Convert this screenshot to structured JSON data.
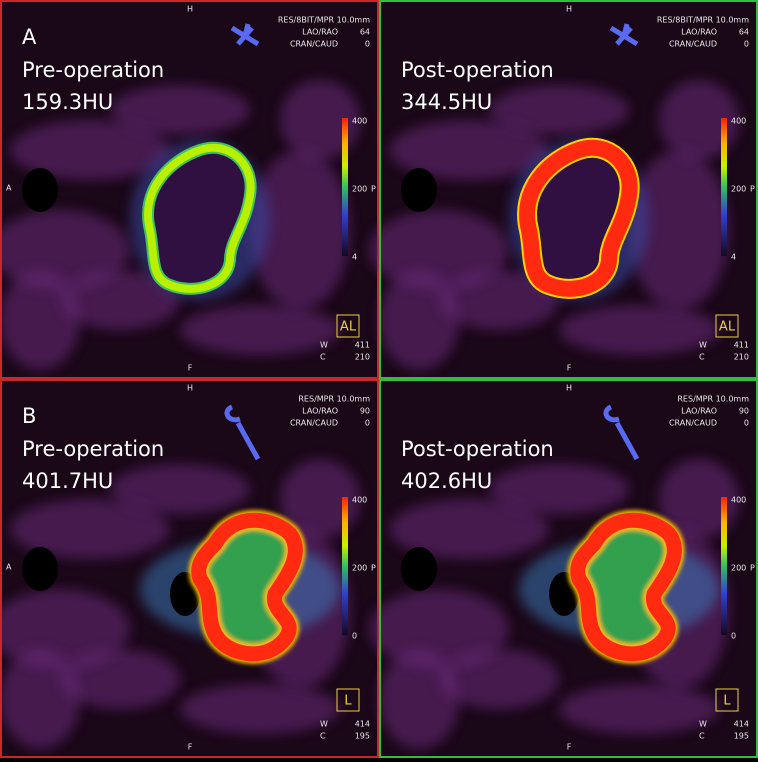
{
  "panels": [
    {
      "label": "A",
      "title": "Pre-operation",
      "value": "159.3HU",
      "border_color": "#c8282a",
      "orientation": {
        "top": "H",
        "bottom": "F",
        "left": "A",
        "right": "P"
      },
      "info": {
        "header": "RES/8BIT/MPR  10.0mm",
        "rows": [
          [
            "LAO/RAO",
            "64"
          ],
          [
            "CRAN/CAUD",
            "0"
          ]
        ]
      },
      "colorbar": [
        "400",
        "200",
        "4"
      ],
      "view_box": "AL",
      "window": [
        [
          "W",
          "411"
        ],
        [
          "C",
          "210"
        ]
      ]
    },
    {
      "title": "Post-operation",
      "value": "344.5HU",
      "border_color": "#2fbf3a",
      "orientation": {
        "top": "H",
        "bottom": "F",
        "right": "P"
      },
      "info": {
        "header": "RES/8BIT/MPR  10.0mm",
        "rows": [
          [
            "LAO/RAO",
            "64"
          ],
          [
            "CRAN/CAUD",
            "0"
          ]
        ]
      },
      "colorbar": [
        "400",
        "200",
        "4"
      ],
      "view_box": "AL",
      "window": [
        [
          "W",
          "411"
        ],
        [
          "C",
          "210"
        ]
      ]
    },
    {
      "label": "B",
      "title": "Pre-operation",
      "value": "401.7HU",
      "border_color": "#c8282a",
      "orientation": {
        "top": "H",
        "bottom": "F",
        "left": "A",
        "right": "P"
      },
      "info": {
        "header": "RES/MPR  10.0mm",
        "rows": [
          [
            "LAO/RAO",
            "90"
          ],
          [
            "CRAN/CAUD",
            "0"
          ]
        ]
      },
      "colorbar": [
        "400",
        "200",
        "0"
      ],
      "view_box": "L",
      "window": [
        [
          "W",
          "414"
        ],
        [
          "C",
          "195"
        ]
      ]
    },
    {
      "title": "Post-operation",
      "value": "402.6HU",
      "border_color": "#2fbf3a",
      "orientation": {
        "top": "H",
        "bottom": "F",
        "right": "P"
      },
      "info": {
        "header": "RES/MPR  10.0mm",
        "rows": [
          [
            "LAO/RAO",
            "90"
          ],
          [
            "CRAN/CAUD",
            "0"
          ]
        ]
      },
      "colorbar": [
        "400",
        "200",
        "0"
      ],
      "view_box": "L",
      "window": [
        [
          "W",
          "414"
        ],
        [
          "C",
          "195"
        ]
      ]
    }
  ]
}
